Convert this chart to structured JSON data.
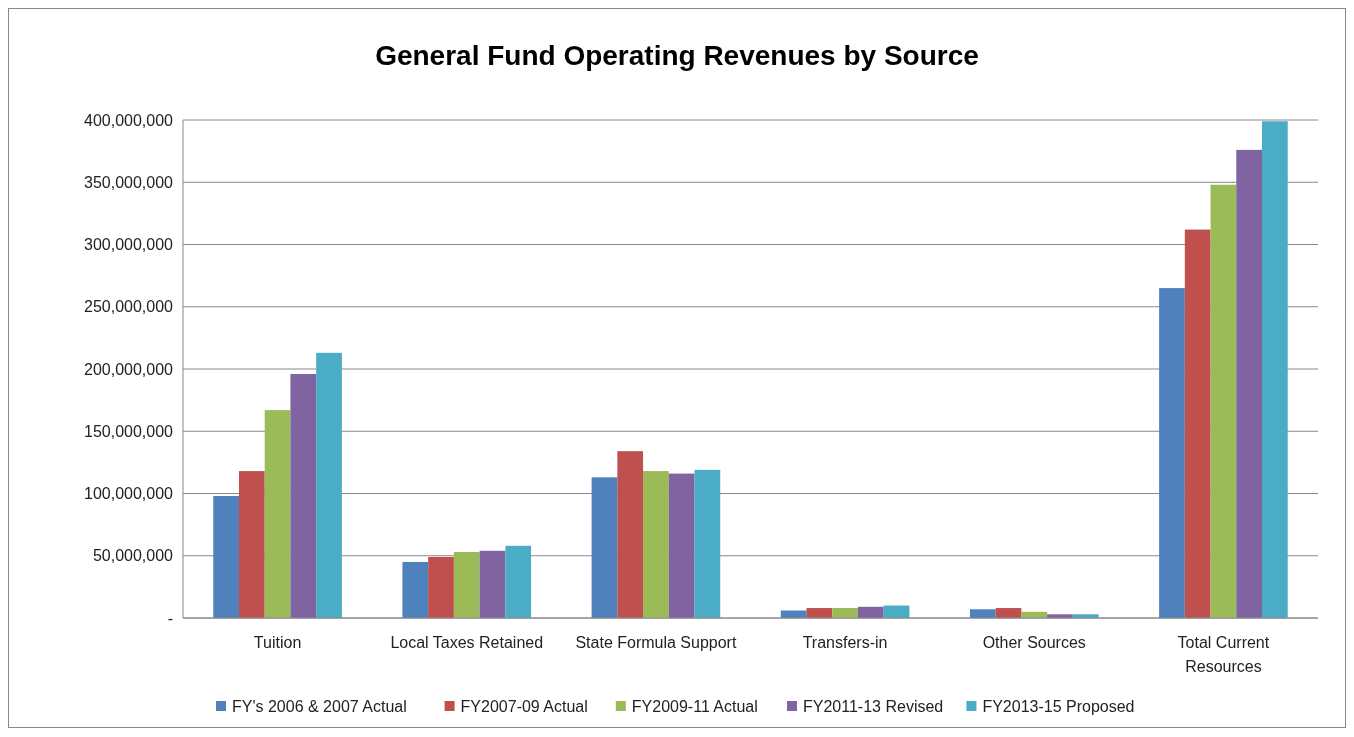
{
  "chart_data": {
    "type": "bar",
    "title": "General Fund Operating Revenues by Source",
    "categories": [
      "Tuition",
      "Local Taxes Retained",
      "State Formula Support",
      "Transfers-in",
      "Other Sources",
      "Total Current Resources"
    ],
    "series": [
      {
        "name": "FY's 2006 & 2007 Actual",
        "color": "#4f81bd",
        "values": [
          98000000,
          45000000,
          113000000,
          6000000,
          7000000,
          265000000
        ]
      },
      {
        "name": "FY2007-09 Actual",
        "color": "#c0504d",
        "values": [
          118000000,
          49000000,
          134000000,
          8000000,
          8000000,
          312000000
        ]
      },
      {
        "name": "FY2009-11 Actual",
        "color": "#9bbb59",
        "values": [
          167000000,
          53000000,
          118000000,
          8000000,
          5000000,
          348000000
        ]
      },
      {
        "name": "FY2011-13 Revised",
        "color": "#8064a2",
        "values": [
          196000000,
          54000000,
          116000000,
          9000000,
          3000000,
          376000000
        ]
      },
      {
        "name": "FY2013-15 Proposed",
        "color": "#4bacc6",
        "values": [
          213000000,
          58000000,
          119000000,
          10000000,
          3000000,
          399000000
        ]
      }
    ],
    "ylim": [
      0,
      400000000
    ],
    "yticks": [
      {
        "value": 0,
        "label": "-"
      },
      {
        "value": 50000000,
        "label": "50,000,000"
      },
      {
        "value": 100000000,
        "label": "100,000,000"
      },
      {
        "value": 150000000,
        "label": "150,000,000"
      },
      {
        "value": 200000000,
        "label": "200,000,000"
      },
      {
        "value": 250000000,
        "label": "250,000,000"
      },
      {
        "value": 300000000,
        "label": "300,000,000"
      },
      {
        "value": 350000000,
        "label": "350,000,000"
      },
      {
        "value": 400000000,
        "label": "400,000,000"
      }
    ],
    "grid": "y",
    "legend": "bottom"
  }
}
